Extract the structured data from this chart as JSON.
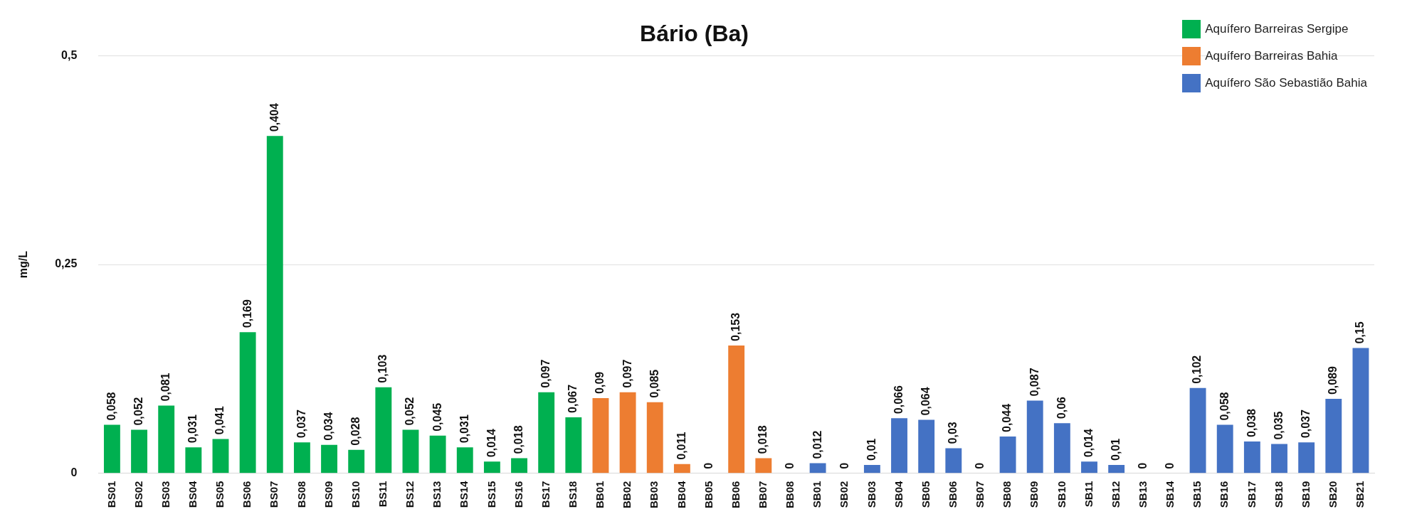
{
  "chart_data": {
    "type": "bar",
    "title": "Bário (Ba)",
    "ylabel": "mg/L",
    "categories": [
      "BS01",
      "BS02",
      "BS03",
      "BS04",
      "BS05",
      "BS06",
      "BS07",
      "BS08",
      "BS09",
      "BS10",
      "BS11",
      "BS12",
      "BS13",
      "BS14",
      "BS15",
      "BS16",
      "BS17",
      "BS18",
      "BB01",
      "BB02",
      "BB03",
      "BB04",
      "BB05",
      "BB06",
      "BB07",
      "BB08",
      "SB01",
      "SB02",
      "SB03",
      "SB04",
      "SB05",
      "SB06",
      "SB07",
      "SB08",
      "SB09",
      "SB10",
      "SB11",
      "SB12",
      "SB13",
      "SB14",
      "SB15",
      "SB16",
      "SB17",
      "SB18",
      "SB19",
      "SB20",
      "SB21"
    ],
    "series": [
      {
        "name": "Aquífero Barreiras Sergipe",
        "color": "#00b050",
        "values": [
          0.058,
          0.052,
          0.081,
          0.031,
          0.041,
          0.169,
          0.404,
          0.037,
          0.034,
          0.028,
          0.103,
          0.052,
          0.045,
          0.031,
          0.014,
          0.018,
          0.097,
          0.067,
          null,
          null,
          null,
          null,
          null,
          null,
          null,
          null,
          null,
          null,
          null,
          null,
          null,
          null,
          null,
          null,
          null,
          null,
          null,
          null,
          null,
          null,
          null,
          null,
          null,
          null,
          null,
          null,
          null
        ],
        "value_labels": [
          "0,058",
          "0,052",
          "0,081",
          "0,031",
          "0,041",
          "0,169",
          "0,404",
          "0,037",
          "0,034",
          "0,028",
          "0,103",
          "0,052",
          "0,045",
          "0,031",
          "0,014",
          "0,018",
          "0,097",
          "0,067",
          null,
          null,
          null,
          null,
          null,
          null,
          null,
          null,
          null,
          null,
          null,
          null,
          null,
          null,
          null,
          null,
          null,
          null,
          null,
          null,
          null,
          null,
          null,
          null,
          null,
          null,
          null,
          null,
          null
        ]
      },
      {
        "name": "Aquífero Barreiras Bahia",
        "color": "#ed7d31",
        "values": [
          null,
          null,
          null,
          null,
          null,
          null,
          null,
          null,
          null,
          null,
          null,
          null,
          null,
          null,
          null,
          null,
          null,
          null,
          0.09,
          0.097,
          0.085,
          0.011,
          0,
          0.153,
          0.018,
          0,
          null,
          null,
          null,
          null,
          null,
          null,
          null,
          null,
          null,
          null,
          null,
          null,
          null,
          null,
          null,
          null,
          null,
          null,
          null,
          null,
          null
        ],
        "value_labels": [
          null,
          null,
          null,
          null,
          null,
          null,
          null,
          null,
          null,
          null,
          null,
          null,
          null,
          null,
          null,
          null,
          null,
          null,
          "0,09",
          "0,097",
          "0,085",
          "0,011",
          "0",
          "0,153",
          "0,018",
          "0",
          null,
          null,
          null,
          null,
          null,
          null,
          null,
          null,
          null,
          null,
          null,
          null,
          null,
          null,
          null,
          null,
          null,
          null,
          null,
          null,
          null
        ]
      },
      {
        "name": "Aquífero São Sebastião Bahia",
        "color": "#4472c4",
        "values": [
          null,
          null,
          null,
          null,
          null,
          null,
          null,
          null,
          null,
          null,
          null,
          null,
          null,
          null,
          null,
          null,
          null,
          null,
          null,
          null,
          null,
          null,
          null,
          null,
          null,
          null,
          0.012,
          0,
          0.01,
          0.066,
          0.064,
          0.03,
          0,
          0.044,
          0.087,
          0.06,
          0.014,
          0.01,
          0,
          0,
          0.102,
          0.058,
          0.038,
          0.035,
          0.037,
          0.089,
          0.15
        ],
        "value_labels": [
          null,
          null,
          null,
          null,
          null,
          null,
          null,
          null,
          null,
          null,
          null,
          null,
          null,
          null,
          null,
          null,
          null,
          null,
          null,
          null,
          null,
          null,
          null,
          null,
          null,
          null,
          "0,012",
          "0",
          "0,01",
          "0,066",
          "0,064",
          "0,03",
          "0",
          "0,044",
          "0,087",
          "0,06",
          "0,014",
          "0,01",
          "0",
          "0",
          "0,102",
          "0,058",
          "0,038",
          "0,035",
          "0,037",
          "0,089",
          "0,15"
        ]
      }
    ],
    "ylim": [
      0,
      0.5
    ],
    "yticks": [
      0,
      {
        "value": 0.25,
        "label": "0,25"
      },
      {
        "value": 0.5,
        "label": "0,5"
      }
    ],
    "grid": "y",
    "legend": "top right"
  }
}
